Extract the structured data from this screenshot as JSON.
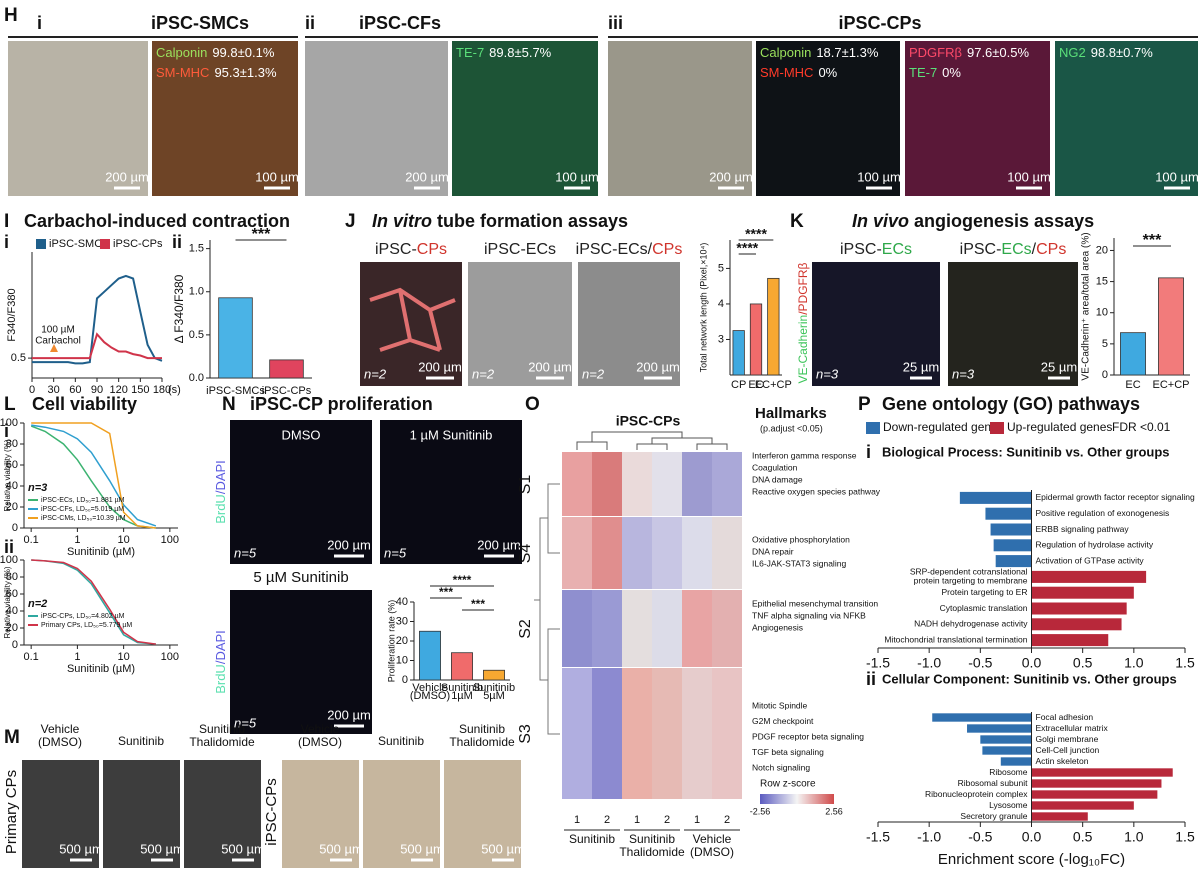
{
  "figure": {
    "H": {
      "letter": "H",
      "sections": [
        {
          "roman": "i",
          "title": "iPSC-SMCs"
        },
        {
          "roman": "ii",
          "title": "iPSC-CFs"
        },
        {
          "roman": "iii",
          "title": "iPSC-CPs"
        }
      ],
      "stains": [
        {
          "marker": "Calponin",
          "value": "99.8±0.1%",
          "color": "#9be15d"
        },
        {
          "marker": "SM-MHC",
          "value": "95.3±1.3%",
          "color": "#ff5b3a"
        },
        {
          "marker": "TE-7",
          "value": "89.8±5.7%",
          "color": "#5be07a"
        },
        {
          "marker": "Calponin",
          "value": "18.7±1.3%",
          "color": "#9be15d"
        },
        {
          "marker": "SM-MHC",
          "value": "0%",
          "color": "#ff3b2a"
        },
        {
          "marker": "PDGFRβ",
          "value": "97.6±0.5%",
          "color": "#ff4a6a"
        },
        {
          "marker": "TE-7",
          "value": "0%",
          "color": "#5be07a"
        },
        {
          "marker": "NG2",
          "value": "98.8±0.7%",
          "color": "#5be07a"
        }
      ],
      "scale_bars": [
        "200 µm",
        "100 µm"
      ]
    },
    "I": {
      "letter": "I",
      "title": "Carbachol-induced contraction"
    },
    "J": {
      "letter": "J",
      "title_italic": "In vitro",
      "title": "tube formation assays",
      "images": [
        [
          {
            "text": "iPSC-",
            "color": "#222222"
          },
          {
            "text": "CPs",
            "color": "#d0342c"
          }
        ],
        [
          {
            "text": "iPSC-ECs",
            "color": "#222222"
          }
        ],
        [
          {
            "text": "iPSC-ECs/",
            "color": "#222222"
          },
          {
            "text": "CPs",
            "color": "#d0342c"
          }
        ]
      ],
      "n": "n=2",
      "scale_bar": "200 µm"
    },
    "K": {
      "letter": "K",
      "title_italic": "In vivo",
      "title": "angiogenesis assays",
      "images": [
        [
          {
            "text": "iPSC-",
            "color": "#222222"
          },
          {
            "text": "ECs",
            "color": "#2fa84a"
          }
        ],
        [
          {
            "text": "iPSC-",
            "color": "#222222"
          },
          {
            "text": "ECs",
            "color": "#2fa84a"
          },
          {
            "text": "/",
            "color": "#222222"
          },
          {
            "text": "CPs",
            "color": "#d0342c"
          }
        ]
      ],
      "stain": [
        {
          "text": "VE-Cadherin",
          "color": "#3cc45a"
        },
        {
          "text": "/PDGFRβ",
          "color": "#d0342c"
        }
      ],
      "n": "n=3",
      "scale_bar": "25 µm"
    },
    "L": {
      "letter": "L",
      "title": "Cell viability"
    },
    "M": {
      "letter": "M",
      "conditions": [
        [
          "Vehicle",
          "(DMSO)"
        ],
        [
          "Sunitinib"
        ],
        [
          "Sunitinib",
          "Thalidomide"
        ]
      ],
      "rows": [
        "Primary CPs",
        "iPSC-CPs"
      ],
      "scale_bar": "500 µm"
    },
    "N": {
      "letter": "N",
      "title": "iPSC-CP proliferation",
      "images": [
        "DMSO",
        "1 µM Sunitinib",
        "5 µM Sunitinib"
      ],
      "stain": [
        {
          "text": "BrdU",
          "color": "#5de0b0"
        },
        {
          "text": "/DAPI",
          "color": "#5a5ae0"
        }
      ],
      "n": "n=5",
      "scale_bar": "200 µm"
    },
    "O": {
      "letter": "O",
      "title": "iPSC-CPs",
      "hallmarks": "Hallmarks",
      "hallmarks_note": "(p.adjust <0.05)",
      "clusters": [
        {
          "name": "S1",
          "pathways": [
            "Interferon gamma response",
            "Coagulation",
            "DNA damage",
            "Reactive oxygen species pathway"
          ]
        },
        {
          "name": "S4",
          "pathways": [
            "Oxidative phosphorylation",
            "DNA repair",
            "IL6-JAK-STAT3 signaling"
          ]
        },
        {
          "name": "S2",
          "pathways": [
            "Epithelial mesenchymal transition",
            "TNF alpha signaling via NFKB",
            "Angiogenesis"
          ]
        },
        {
          "name": "S3",
          "pathways": [
            "Mitotic Spindle",
            "G2M checkpoint",
            "PDGF receptor beta signaling",
            "TGF beta signaling",
            "Notch signaling"
          ]
        }
      ],
      "columns": [
        "1",
        "2",
        "1",
        "2",
        "1",
        "2"
      ],
      "groups": [
        [
          "Sunitinib"
        ],
        [
          "Sunitinib",
          "Thalidomide"
        ],
        [
          "Vehicle",
          "(DMSO)"
        ]
      ],
      "scale": {
        "title": "Row z-score",
        "min": -2.56,
        "max": 2.56
      }
    },
    "P": {
      "letter": "P",
      "title": "Gene ontology (GO) pathways",
      "legend": [
        {
          "name": "Down-regulated genes",
          "color": "#2f6fae"
        },
        {
          "name": "Up-regulated genes",
          "color": "#b8283a"
        }
      ],
      "note": "FDR <0.01"
    }
  },
  "chart_data": [
    {
      "type": "line",
      "label": "i",
      "ylabel": "F340/F380",
      "x": [
        0,
        10,
        20,
        30,
        40,
        50,
        60,
        70,
        80,
        90,
        100,
        110,
        120,
        130,
        140,
        150,
        160,
        170,
        180
      ],
      "xlim": [
        0,
        180
      ],
      "xticks": [
        0,
        30,
        60,
        90,
        120,
        150,
        180
      ],
      "x_unit": "(s)",
      "ylim": [
        0.35,
        1.3
      ],
      "yticks": [
        0.5
      ],
      "series": [
        {
          "name": "iPSC-SMCs",
          "color": "#1f5f8b",
          "values": [
            0.47,
            0.47,
            0.47,
            0.47,
            0.47,
            0.47,
            0.46,
            0.46,
            0.47,
            0.95,
            1.0,
            1.05,
            1.1,
            1.12,
            1.1,
            0.85,
            0.6,
            0.5,
            0.48
          ]
        },
        {
          "name": "iPSC-CPs",
          "color": "#d0344a",
          "values": [
            0.5,
            0.5,
            0.5,
            0.5,
            0.5,
            0.5,
            0.5,
            0.5,
            0.5,
            0.68,
            0.62,
            0.58,
            0.55,
            0.55,
            0.53,
            0.52,
            0.5,
            0.5,
            0.5
          ]
        }
      ],
      "annotation": [
        "100 µM",
        "Carbachol"
      ]
    },
    {
      "type": "bar",
      "label": "ii",
      "ylabel": "Δ F340/F380",
      "categories": [
        "iPSC-SMCs",
        "iPSC-CPs"
      ],
      "values": [
        0.93,
        0.21
      ],
      "colors": [
        "#4ab3e6",
        "#e0445e"
      ],
      "ylim": [
        0,
        1.6
      ],
      "yticks": [
        {
          "value": 0,
          "label": "0.0"
        },
        0.5,
        {
          "value": 1,
          "label": "1.0"
        },
        1.5
      ],
      "significance": "***"
    },
    {
      "type": "bar",
      "ylabel": "Total network length (Pixel,×10⁴)",
      "categories": [
        "CP",
        "EC",
        "EC+CP"
      ],
      "values": [
        3.25,
        4.0,
        4.72
      ],
      "colors": [
        "#3fa9e0",
        "#f06b6b",
        "#f7a831"
      ],
      "ylim": [
        2,
        5.8
      ],
      "yticks": [
        3,
        4,
        5
      ],
      "significance": [
        "****",
        "****"
      ]
    },
    {
      "type": "bar",
      "ylabel": "VE-Cadherin⁺ area/total area (%)",
      "categories": [
        "EC",
        "EC+CP"
      ],
      "values": [
        6.8,
        15.6
      ],
      "colors": [
        "#3fa9e0",
        "#f27b7b"
      ],
      "ylim": [
        0,
        22
      ],
      "yticks": [
        0,
        5,
        10,
        15,
        20
      ],
      "significance": "***"
    },
    {
      "type": "line",
      "label": "i",
      "log_x": true,
      "xlabel": "Sunitinib (µM)",
      "ylabel": "Relative viability (%)",
      "n": "n=3",
      "x": [
        0.1,
        0.2,
        0.5,
        1,
        2,
        5,
        10,
        20,
        50
      ],
      "xlim": [
        0.07,
        150
      ],
      "xticks": [
        0.1,
        1,
        10,
        100
      ],
      "ylim": [
        0,
        100
      ],
      "yticks": [
        0,
        20,
        40,
        60,
        80,
        100
      ],
      "series": [
        {
          "name": "iPSC-ECs, LD₅₀=1.881 µM",
          "color": "#3cb371",
          "values": [
            97,
            92,
            80,
            65,
            45,
            20,
            8,
            2,
            0
          ]
        },
        {
          "name": "iPSC-CFs, LD₅₀=5.019 µM",
          "color": "#2f9fcf",
          "values": [
            98,
            96,
            92,
            85,
            72,
            45,
            22,
            8,
            2
          ]
        },
        {
          "name": "iPSC-CMs, LD₅₀=10.39 µM",
          "color": "#f0a020",
          "values": [
            100,
            100,
            100,
            100,
            100,
            90,
            15,
            2,
            0
          ]
        }
      ]
    },
    {
      "type": "line",
      "label": "ii",
      "log_x": true,
      "xlabel": "Sunitinib (µM)",
      "ylabel": "Relative viability (%)",
      "n": "n=2",
      "x": [
        0.1,
        0.2,
        0.5,
        1,
        2,
        5,
        10,
        20,
        50
      ],
      "xlim": [
        0.07,
        150
      ],
      "xticks": [
        0.1,
        1,
        10,
        100
      ],
      "ylim": [
        0,
        100
      ],
      "yticks": [
        0,
        20,
        40,
        60,
        80,
        100
      ],
      "series": [
        {
          "name": "iPSC-CPs, LD₅₀=4.802 µM",
          "color": "#2fa8a0",
          "values": [
            100,
            99,
            96,
            88,
            72,
            38,
            12,
            3,
            1
          ]
        },
        {
          "name": "Primary CPs, LD₅₀=5.779 µM",
          "color": "#d0344a",
          "values": [
            100,
            99,
            97,
            90,
            75,
            42,
            15,
            4,
            1
          ]
        }
      ]
    },
    {
      "type": "bar",
      "ylabel": "Proliferation rate (%)",
      "categories": [
        [
          "Vehicle",
          "(DMSO)"
        ],
        [
          "Sunitinib",
          "1µM"
        ],
        [
          "Sunitinib",
          "5µM"
        ]
      ],
      "values": [
        25,
        14,
        5
      ],
      "colors": [
        "#3fa9e0",
        "#f06b6b",
        "#f7a831"
      ],
      "ylim": [
        0,
        40
      ],
      "yticks": [
        0,
        10,
        20,
        30,
        40
      ],
      "significance": [
        "****",
        "***",
        "***"
      ]
    },
    {
      "type": "barh",
      "label": "i",
      "title": "Biological Process: Sunitinib vs. Other groups",
      "categories": [
        "Epidermal growth factor receptor signaling",
        "Positive regulation of exonogenesis",
        "ERBB signaling pathway",
        "Regulation of hydrolase activity",
        "Activation of GTPase activity",
        [
          "SRP-dependent cotranslational",
          "protein targeting to membrane"
        ],
        "Protein targeting to ER",
        "Cytoplasmic translation",
        "NADH dehydrogenase activity",
        "Mitochondrial translational termination"
      ],
      "values": [
        -0.7,
        -0.45,
        -0.4,
        -0.37,
        -0.35,
        1.12,
        1.0,
        0.93,
        0.88,
        0.75
      ],
      "highlight_index": 0,
      "highlight_color": "#e8962e",
      "xlim": [
        -1.5,
        1.5
      ],
      "xticks": [
        -1.5,
        {
          "value": -1,
          "label": "-1.0"
        },
        -0.5,
        {
          "value": 0,
          "label": "0.0"
        },
        0.5,
        {
          "value": 1,
          "label": "1.0"
        },
        1.5
      ]
    },
    {
      "type": "barh",
      "label": "ii",
      "title": "Cellular Component: Sunitinib vs. Other groups",
      "categories": [
        "Focal adhesion",
        "Extracellular matrix",
        "Golgi membrane",
        "Cell-Cell junction",
        "Actin skeleton",
        "Ribosome",
        "Ribosomal subunit",
        "Ribonucleoprotein complex",
        "Lysosome",
        "Secretory granule"
      ],
      "values": [
        -0.97,
        -0.63,
        -0.5,
        -0.48,
        -0.3,
        1.38,
        1.27,
        1.23,
        1.0,
        0.55
      ],
      "xlabel": "Enrichment score (-log₁₀FC)",
      "xlim": [
        -1.5,
        1.5
      ],
      "xticks": [
        -1.5,
        {
          "value": -1,
          "label": "-1.0"
        },
        -0.5,
        {
          "value": 0,
          "label": "0.0"
        },
        0.5,
        {
          "value": 1,
          "label": "1.0"
        },
        1.5
      ]
    }
  ]
}
